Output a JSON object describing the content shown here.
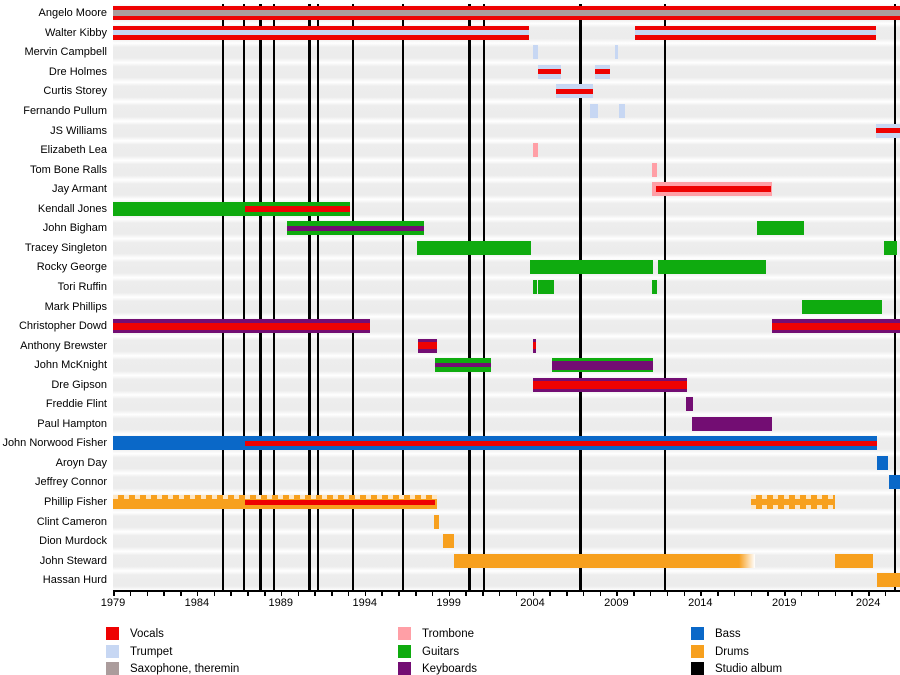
{
  "chart_data": {
    "type": "timeline",
    "title": "Band members timeline (gantt chart, no visible title)",
    "x_axis": {
      "start": 1979,
      "end": 2025.9,
      "major_tick_labels": [
        "1979",
        "1984",
        "1989",
        "1994",
        "1999",
        "2004",
        "2009",
        "2014",
        "2019",
        "2024"
      ],
      "major_tick_years": [
        1979,
        1984,
        1989,
        1994,
        1999,
        2004,
        2009,
        2014,
        2019,
        2024
      ],
      "minor_tick_every_years": 1,
      "grid": "off"
    },
    "colors": {
      "vocals": "#ee0202",
      "trumpet": "#c7d7f3",
      "saxophone": "#ab9c9c",
      "trombone": "#ff9fa6",
      "guitars": "#0fab0f",
      "keyboards": "#730d73",
      "bass": "#0a68c8",
      "drums": "#f7a01e",
      "album": "#000000"
    },
    "legend": [
      {
        "label": "Vocals",
        "color": "#ee0202"
      },
      {
        "label": "Trumpet",
        "color": "#c7d7f3"
      },
      {
        "label": "Saxophone, theremin",
        "color": "#ab9c9c"
      },
      {
        "label": "Trombone",
        "color": "#ff9fa6"
      },
      {
        "label": "Guitars",
        "color": "#0fab0f"
      },
      {
        "label": "Keyboards",
        "color": "#730d73"
      },
      {
        "label": "Bass",
        "color": "#0a68c8"
      },
      {
        "label": "Drums",
        "color": "#f7a01e"
      },
      {
        "label": "Studio album",
        "color": "#000000"
      }
    ],
    "album_line_years": [
      1985.55,
      1986.8,
      1987.8,
      1988.6,
      1990.7,
      1991.2,
      1993.3,
      1996.3,
      2000.25,
      2001.1,
      2006.85,
      2011.9,
      2025.6
    ],
    "members": [
      {
        "name": "Angelo Moore",
        "segments": [
          {
            "from": 1979,
            "to": 2025.9,
            "role": "vocals",
            "stripe": "saxophone",
            "stripe_h": 6
          }
        ]
      },
      {
        "name": "Walter Kibby",
        "segments": [
          {
            "from": 1979,
            "to": 2003.8,
            "role": "vocals",
            "stripe": "trumpet",
            "stripe_h": 5
          },
          {
            "from": 2010.1,
            "to": 2024.5,
            "role": "vocals",
            "stripe": "trumpet",
            "stripe_h": 5
          }
        ]
      },
      {
        "name": "Mervin Campbell",
        "segments": [
          {
            "from": 2004.0,
            "to": 2004.3,
            "role": "trumpet"
          },
          {
            "from": 2008.9,
            "to": 2009.1,
            "role": "trumpet"
          }
        ]
      },
      {
        "name": "Dre Holmes",
        "segments": [
          {
            "from": 2004.35,
            "to": 2005.7,
            "role": "trumpet",
            "stripe": "vocals",
            "stripe_h": 5
          },
          {
            "from": 2007.75,
            "to": 2008.6,
            "role": "trumpet",
            "stripe": "vocals",
            "stripe_h": 5
          }
        ]
      },
      {
        "name": "Curtis Storey",
        "segments": [
          {
            "from": 2005.4,
            "to": 2007.6,
            "role": "trumpet",
            "stripe": "vocals",
            "stripe_h": 5
          }
        ]
      },
      {
        "name": "Fernando Pullum",
        "segments": [
          {
            "from": 2007.4,
            "to": 2007.9,
            "role": "trumpet"
          },
          {
            "from": 2009.15,
            "to": 2009.5,
            "role": "trumpet"
          }
        ]
      },
      {
        "name": "JS Williams",
        "segments": [
          {
            "from": 2024.45,
            "to": 2025.9,
            "role": "trumpet",
            "stripe": "vocals",
            "stripe_h": 5
          }
        ]
      },
      {
        "name": "Elizabeth Lea",
        "segments": [
          {
            "from": 2004.05,
            "to": 2004.35,
            "role": "trombone"
          }
        ]
      },
      {
        "name": "Tom Bone Ralls",
        "segments": [
          {
            "from": 2011.15,
            "to": 2011.4,
            "role": "trombone"
          }
        ]
      },
      {
        "name": "Jay Armant",
        "segments": [
          {
            "from": 2011.1,
            "to": 2018.3,
            "role": "trombone",
            "stripe": "vocals",
            "stripe_h": 6,
            "stripe_from": 2011.35,
            "stripe_to": 2018.2
          }
        ]
      },
      {
        "name": "Kendall Jones",
        "segments": [
          {
            "from": 1979,
            "to": 1993.1,
            "role": "guitars",
            "stripe": "vocals",
            "stripe_h": 6,
            "stripe_from": 1986.85
          }
        ]
      },
      {
        "name": "John Bigham",
        "segments": [
          {
            "from": 1989.35,
            "to": 1997.55,
            "role": "guitars",
            "stripe": "keyboards",
            "stripe_h": 5
          },
          {
            "from": 2017.35,
            "to": 2020.2,
            "role": "guitars"
          }
        ]
      },
      {
        "name": "Tracey Singleton",
        "segments": [
          {
            "from": 1997.1,
            "to": 2003.9,
            "role": "guitars"
          },
          {
            "from": 2024.95,
            "to": 2025.7,
            "role": "guitars"
          }
        ]
      },
      {
        "name": "Rocky George",
        "segments": [
          {
            "from": 2003.85,
            "to": 2011.2,
            "role": "guitars"
          },
          {
            "from": 2011.45,
            "to": 2017.9,
            "role": "guitars"
          }
        ]
      },
      {
        "name": "Tori Ruffin",
        "segments": [
          {
            "from": 2004.0,
            "to": 2004.25,
            "role": "guitars"
          },
          {
            "from": 2004.35,
            "to": 2005.3,
            "role": "guitars"
          },
          {
            "from": 2011.15,
            "to": 2011.4,
            "role": "guitars"
          }
        ]
      },
      {
        "name": "Mark Phillips",
        "segments": [
          {
            "from": 2020.05,
            "to": 2024.85,
            "role": "guitars"
          }
        ]
      },
      {
        "name": "Christopher Dowd",
        "segments": [
          {
            "from": 1979,
            "to": 1994.3,
            "role": "keyboards",
            "stripe": "vocals",
            "stripe_h": 7
          },
          {
            "from": 2018.25,
            "to": 2025.9,
            "role": "keyboards",
            "stripe": "vocals",
            "stripe_h": 7
          }
        ]
      },
      {
        "name": "Anthony Brewster",
        "segments": [
          {
            "from": 1997.15,
            "to": 1998.3,
            "role": "keyboards",
            "stripe": "vocals",
            "stripe_h": 7
          },
          {
            "from": 2004.0,
            "to": 2004.2,
            "role": "keyboards",
            "stripe": "vocals",
            "stripe_h": 7
          }
        ]
      },
      {
        "name": "John McKnight",
        "segments": [
          {
            "from": 1998.2,
            "to": 2001.55,
            "role": "guitars",
            "stripe": "keyboards",
            "stripe_h": 4
          },
          {
            "from": 2005.15,
            "to": 2011.2,
            "role": "guitars",
            "stripe": "keyboards",
            "stripe_h": 9
          }
        ]
      },
      {
        "name": "Dre Gipson",
        "segments": [
          {
            "from": 2004.05,
            "to": 2013.2,
            "role": "keyboards",
            "stripe": "vocals",
            "stripe_h": 8
          }
        ]
      },
      {
        "name": "Freddie Flint",
        "segments": [
          {
            "from": 2013.15,
            "to": 2013.55,
            "role": "keyboards"
          }
        ]
      },
      {
        "name": "Paul Hampton",
        "segments": [
          {
            "from": 2013.5,
            "to": 2018.25,
            "role": "keyboards"
          }
        ]
      },
      {
        "name": "John Norwood Fisher",
        "segments": [
          {
            "from": 1979,
            "to": 2024.5,
            "role": "bass",
            "stripe": "vocals",
            "stripe_h": 5,
            "stripe_from": 1986.85
          }
        ]
      },
      {
        "name": "Aroyn Day",
        "segments": [
          {
            "from": 2024.55,
            "to": 2025.2,
            "role": "bass"
          }
        ]
      },
      {
        "name": "Jeffrey Connor",
        "segments": [
          {
            "from": 2025.25,
            "to": 2025.9,
            "role": "bass"
          }
        ]
      },
      {
        "name": "Phillip Fisher",
        "segments": [
          {
            "from": 1979,
            "to": 1998.3,
            "role": "drums",
            "stripe": "vocals",
            "stripe_h": 5,
            "stripe_from": 1986.85,
            "stripe_to": 1998.2,
            "dashed": "top"
          },
          {
            "from": 2017.0,
            "to": 2022.05,
            "role": "drums",
            "dashed": "both"
          }
        ]
      },
      {
        "name": "Clint Cameron",
        "segments": [
          {
            "from": 1998.15,
            "to": 1998.4,
            "role": "drums"
          }
        ]
      },
      {
        "name": "Dion Murdock",
        "segments": [
          {
            "from": 1998.65,
            "to": 1999.35,
            "role": "drums"
          }
        ]
      },
      {
        "name": "John Steward",
        "segments": [
          {
            "from": 1999.35,
            "to": 2017.25,
            "role": "drums",
            "fade": "right"
          },
          {
            "from": 2022.05,
            "to": 2024.3,
            "role": "drums"
          }
        ]
      },
      {
        "name": "Hassan Hurd",
        "segments": [
          {
            "from": 2024.5,
            "to": 2025.9,
            "role": "drums"
          }
        ]
      }
    ]
  },
  "layout_note": "timeline of band member tenures with studio-album vertical lines"
}
